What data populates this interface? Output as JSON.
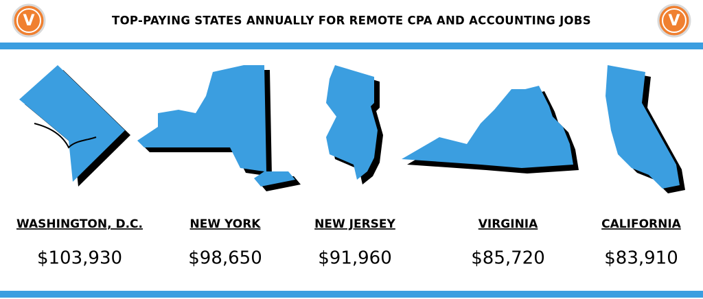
{
  "header": {
    "title": "TOP-PAYING STATES ANNUALLY FOR REMOTE CPA AND ACCOUNTING JOBS",
    "logo": "V"
  },
  "states": [
    {
      "name": "WASHINGTON, D.C.",
      "salary": "$103,930"
    },
    {
      "name": "NEW YORK",
      "salary": "$98,650"
    },
    {
      "name": "NEW JERSEY",
      "salary": "$91,960"
    },
    {
      "name": "VIRGINIA",
      "salary": "$85,720"
    },
    {
      "name": "CALIFORNIA",
      "salary": "$83,910"
    }
  ]
}
